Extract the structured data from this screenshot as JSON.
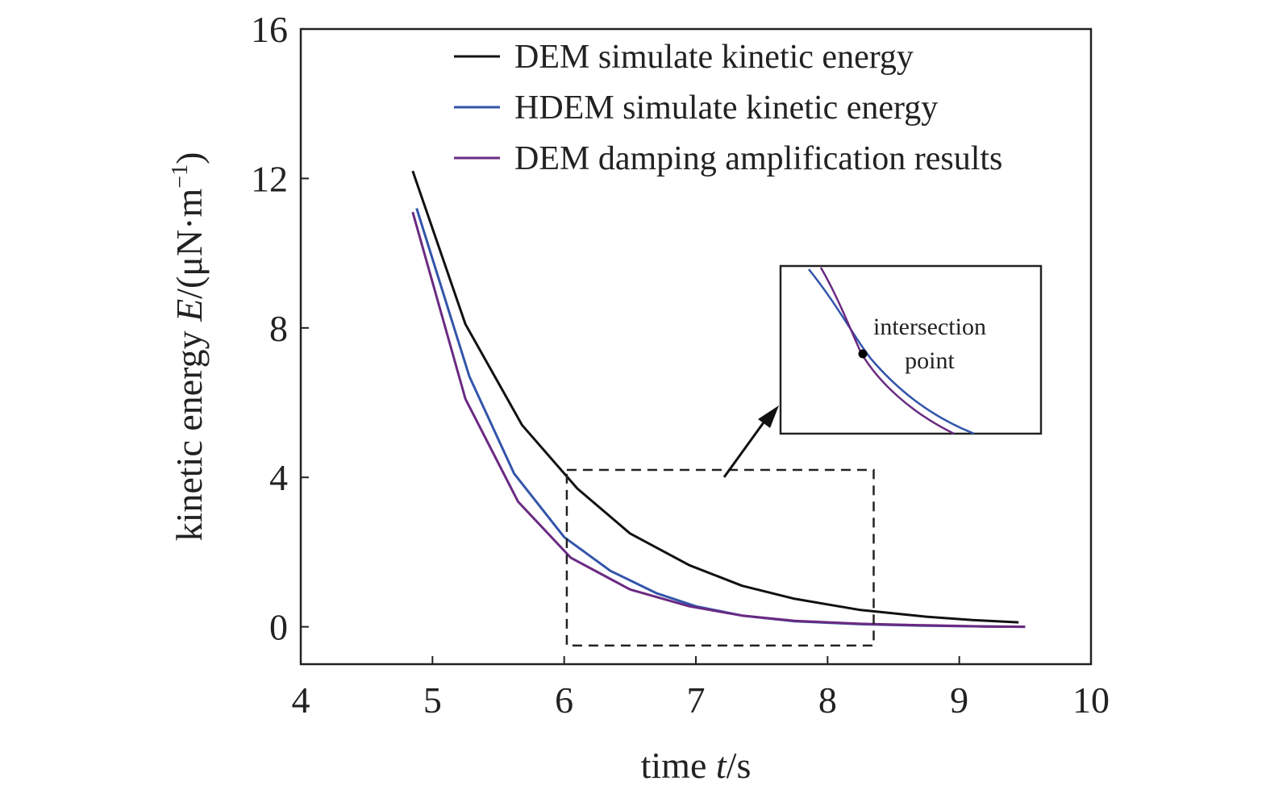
{
  "chart_data": {
    "type": "line",
    "title": "",
    "xlabel": {
      "prefix": "time ",
      "var": "t",
      "suffix": "/s"
    },
    "ylabel": {
      "prefix": "kinetic energy ",
      "var": "E",
      "unit_open": "/(μN·m",
      "unit_sup": "−1",
      "unit_close": ")"
    },
    "xlim": [
      4,
      10
    ],
    "ylim": [
      -1,
      16
    ],
    "xticks": [
      4,
      5,
      6,
      7,
      8,
      9,
      10
    ],
    "yticks": [
      0,
      4,
      8,
      12,
      16
    ],
    "grid": false,
    "legend_position": "top-right",
    "series": [
      {
        "name": "DEM simulate kinetic energy",
        "color": "#111111",
        "x": [
          4.85,
          5.25,
          5.68,
          6.1,
          6.5,
          6.95,
          7.35,
          7.75,
          8.25,
          8.75,
          9.1,
          9.45
        ],
        "y": [
          12.2,
          8.1,
          5.4,
          3.7,
          2.5,
          1.65,
          1.1,
          0.75,
          0.45,
          0.27,
          0.18,
          0.12
        ]
      },
      {
        "name": "HDEM simulate kinetic energy",
        "color": "#3355aa",
        "x": [
          4.88,
          5.28,
          5.62,
          6.0,
          6.35,
          6.7,
          7.0,
          7.35,
          7.75,
          8.25,
          8.75,
          9.2,
          9.5
        ],
        "y": [
          11.2,
          6.7,
          4.1,
          2.4,
          1.5,
          0.9,
          0.55,
          0.3,
          0.15,
          0.07,
          0.03,
          0.01,
          0.0
        ]
      },
      {
        "name": "DEM damping amplification results",
        "color": "#6a2a82",
        "x": [
          4.85,
          5.25,
          5.65,
          6.05,
          6.5,
          6.95,
          7.35,
          7.75,
          8.25,
          8.75,
          9.2,
          9.5
        ],
        "y": [
          11.1,
          6.1,
          3.35,
          1.85,
          1.0,
          0.55,
          0.3,
          0.16,
          0.08,
          0.04,
          0.01,
          0.0
        ]
      }
    ],
    "annotations": {
      "zoom_box_x": [
        6.02,
        8.35
      ],
      "zoom_box_y": [
        -0.5,
        4.2
      ],
      "inset_label_line1": "intersection",
      "inset_label_line2": "point"
    }
  }
}
